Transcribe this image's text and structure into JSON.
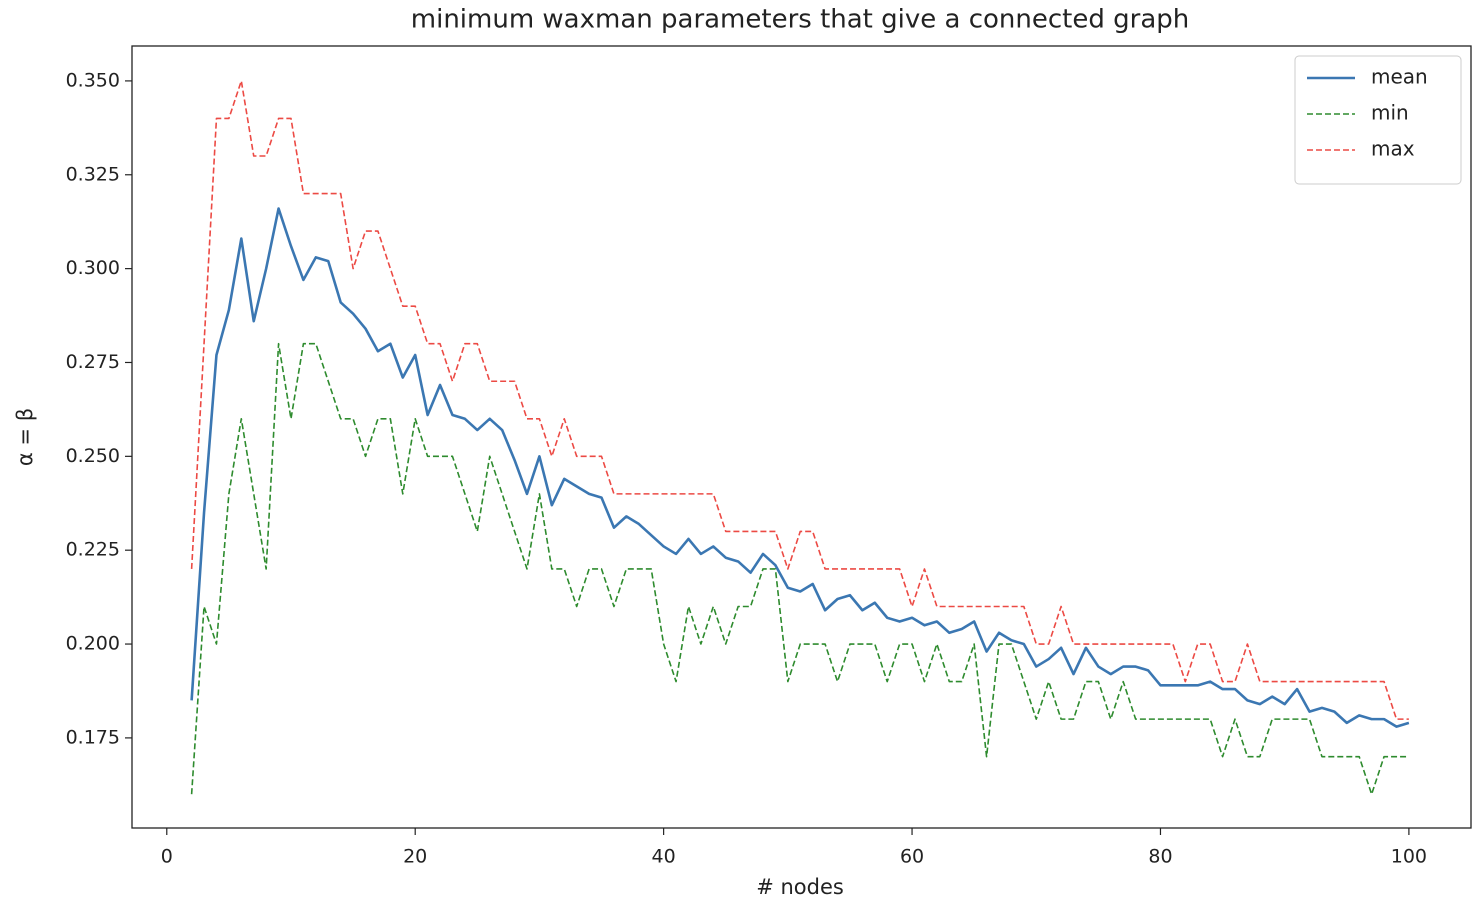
{
  "chart_data": {
    "type": "line",
    "title": "minimum waxman parameters that give a connected graph",
    "x_label": "# nodes",
    "y_label": "α = β",
    "x": [
      2,
      3,
      4,
      5,
      6,
      7,
      8,
      9,
      10,
      11,
      12,
      13,
      14,
      15,
      16,
      17,
      18,
      19,
      20,
      21,
      22,
      23,
      24,
      25,
      26,
      27,
      28,
      29,
      30,
      31,
      32,
      33,
      34,
      35,
      36,
      37,
      38,
      39,
      40,
      41,
      42,
      43,
      44,
      45,
      46,
      47,
      48,
      49,
      50,
      51,
      52,
      53,
      54,
      55,
      56,
      57,
      58,
      59,
      60,
      61,
      62,
      63,
      64,
      65,
      66,
      67,
      68,
      69,
      70,
      71,
      72,
      73,
      74,
      75,
      76,
      77,
      78,
      79,
      80,
      81,
      82,
      83,
      84,
      85,
      86,
      87,
      88,
      89,
      90,
      91,
      92,
      93,
      94,
      95,
      96,
      97,
      98,
      99,
      100
    ],
    "series": [
      {
        "name": "mean",
        "color": "#3b77b2",
        "linestyle": "solid",
        "values": [
          0.185,
          0.235,
          0.277,
          0.289,
          0.308,
          0.286,
          0.3,
          0.316,
          0.306,
          0.297,
          0.303,
          0.302,
          0.291,
          0.288,
          0.284,
          0.278,
          0.28,
          0.271,
          0.277,
          0.261,
          0.269,
          0.261,
          0.26,
          0.257,
          0.26,
          0.257,
          0.249,
          0.24,
          0.25,
          0.237,
          0.244,
          0.242,
          0.24,
          0.239,
          0.231,
          0.234,
          0.232,
          0.229,
          0.226,
          0.224,
          0.228,
          0.224,
          0.226,
          0.223,
          0.222,
          0.219,
          0.224,
          0.221,
          0.215,
          0.214,
          0.216,
          0.209,
          0.212,
          0.213,
          0.209,
          0.211,
          0.207,
          0.206,
          0.207,
          0.205,
          0.206,
          0.203,
          0.204,
          0.206,
          0.198,
          0.203,
          0.201,
          0.2,
          0.194,
          0.196,
          0.199,
          0.192,
          0.199,
          0.194,
          0.192,
          0.194,
          0.194,
          0.193,
          0.189,
          0.189,
          0.189,
          0.189,
          0.19,
          0.188,
          0.188,
          0.185,
          0.184,
          0.186,
          0.184,
          0.188,
          0.182,
          0.183,
          0.182,
          0.179,
          0.181,
          0.18,
          0.18,
          0.178,
          0.179
        ]
      },
      {
        "name": "min",
        "color": "#2e8b2e",
        "linestyle": "dashed",
        "values": [
          0.16,
          0.21,
          0.2,
          0.24,
          0.26,
          0.24,
          0.22,
          0.28,
          0.26,
          0.28,
          0.28,
          0.27,
          0.26,
          0.26,
          0.25,
          0.26,
          0.26,
          0.24,
          0.26,
          0.25,
          0.25,
          0.25,
          0.24,
          0.23,
          0.25,
          0.24,
          0.23,
          0.22,
          0.24,
          0.22,
          0.22,
          0.21,
          0.22,
          0.22,
          0.21,
          0.22,
          0.22,
          0.22,
          0.2,
          0.19,
          0.21,
          0.2,
          0.21,
          0.2,
          0.21,
          0.21,
          0.22,
          0.22,
          0.19,
          0.2,
          0.2,
          0.2,
          0.19,
          0.2,
          0.2,
          0.2,
          0.19,
          0.2,
          0.2,
          0.19,
          0.2,
          0.19,
          0.19,
          0.2,
          0.17,
          0.2,
          0.2,
          0.19,
          0.18,
          0.19,
          0.18,
          0.18,
          0.19,
          0.19,
          0.18,
          0.19,
          0.18,
          0.18,
          0.18,
          0.18,
          0.18,
          0.18,
          0.18,
          0.17,
          0.18,
          0.17,
          0.17,
          0.18,
          0.18,
          0.18,
          0.18,
          0.17,
          0.17,
          0.17,
          0.17,
          0.16,
          0.17,
          0.17,
          0.17
        ]
      },
      {
        "name": "max",
        "color": "#ec4a44",
        "linestyle": "dashed",
        "values": [
          0.22,
          0.28,
          0.34,
          0.34,
          0.35,
          0.33,
          0.33,
          0.34,
          0.34,
          0.32,
          0.32,
          0.32,
          0.32,
          0.3,
          0.31,
          0.31,
          0.3,
          0.29,
          0.29,
          0.28,
          0.28,
          0.27,
          0.28,
          0.28,
          0.27,
          0.27,
          0.27,
          0.26,
          0.26,
          0.25,
          0.26,
          0.25,
          0.25,
          0.25,
          0.24,
          0.24,
          0.24,
          0.24,
          0.24,
          0.24,
          0.24,
          0.24,
          0.24,
          0.23,
          0.23,
          0.23,
          0.23,
          0.23,
          0.22,
          0.23,
          0.23,
          0.22,
          0.22,
          0.22,
          0.22,
          0.22,
          0.22,
          0.22,
          0.21,
          0.22,
          0.21,
          0.21,
          0.21,
          0.21,
          0.21,
          0.21,
          0.21,
          0.21,
          0.2,
          0.2,
          0.21,
          0.2,
          0.2,
          0.2,
          0.2,
          0.2,
          0.2,
          0.2,
          0.2,
          0.2,
          0.19,
          0.2,
          0.2,
          0.19,
          0.19,
          0.2,
          0.19,
          0.19,
          0.19,
          0.19,
          0.19,
          0.19,
          0.19,
          0.19,
          0.19,
          0.19,
          0.19,
          0.18,
          0.18
        ]
      }
    ],
    "xlim": [
      -2.8,
      105
    ],
    "ylim": [
      0.151,
      0.3593
    ],
    "xticks": [
      0,
      20,
      40,
      60,
      80,
      100
    ],
    "yticks": [
      0.175,
      {
        "value": 0.2,
        "label": "0.200"
      },
      0.225,
      {
        "value": 0.25,
        "label": "0.250"
      },
      0.275,
      {
        "value": 0.3,
        "label": "0.300"
      },
      0.325,
      {
        "value": 0.35,
        "label": "0.350"
      }
    ],
    "grid": false,
    "legend": "upper right"
  }
}
